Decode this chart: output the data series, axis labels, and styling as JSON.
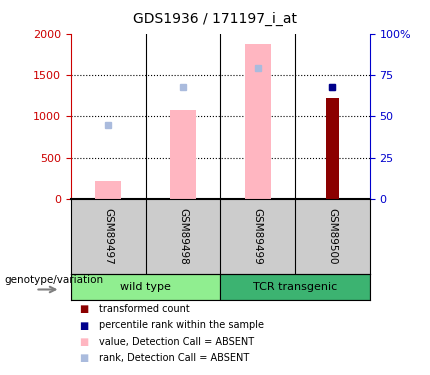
{
  "title": "GDS1936 / 171197_i_at",
  "samples": [
    "GSM89497",
    "GSM89498",
    "GSM89499",
    "GSM89500"
  ],
  "groups": [
    {
      "label": "wild type",
      "samples": [
        0,
        1
      ],
      "color": "#90EE90"
    },
    {
      "label": "TCR transgenic",
      "samples": [
        2,
        3
      ],
      "color": "#3CB371"
    }
  ],
  "left_yaxis": {
    "min": 0,
    "max": 2000,
    "ticks": [
      0,
      500,
      1000,
      1500,
      2000
    ],
    "color": "#CC0000"
  },
  "right_yaxis": {
    "min": 0,
    "max": 100,
    "ticks": [
      0,
      25,
      50,
      75,
      100
    ],
    "color": "#0000CC"
  },
  "pink_bars": {
    "values": [
      220,
      1070,
      1870,
      0
    ],
    "color": "#FFB6C1"
  },
  "dark_red_bars": {
    "values": [
      0,
      0,
      0,
      1220
    ],
    "color": "#8B0000"
  },
  "blue_rank_squares": {
    "values": [
      900,
      1360,
      1580,
      1360
    ],
    "color": "#AABBDD"
  },
  "dark_blue_squares": {
    "values": [
      null,
      null,
      null,
      1360
    ],
    "color": "#00008B"
  },
  "background_color": "#FFFFFF",
  "plot_bg_color": "#FFFFFF",
  "sample_bg_color": "#CCCCCC",
  "genotype_label": "genotype/variation",
  "legend_items": [
    {
      "label": "transformed count",
      "color": "#8B0000"
    },
    {
      "label": "percentile rank within the sample",
      "color": "#00008B"
    },
    {
      "label": "value, Detection Call = ABSENT",
      "color": "#FFB6C1"
    },
    {
      "label": "rank, Detection Call = ABSENT",
      "color": "#AABBDD"
    }
  ]
}
